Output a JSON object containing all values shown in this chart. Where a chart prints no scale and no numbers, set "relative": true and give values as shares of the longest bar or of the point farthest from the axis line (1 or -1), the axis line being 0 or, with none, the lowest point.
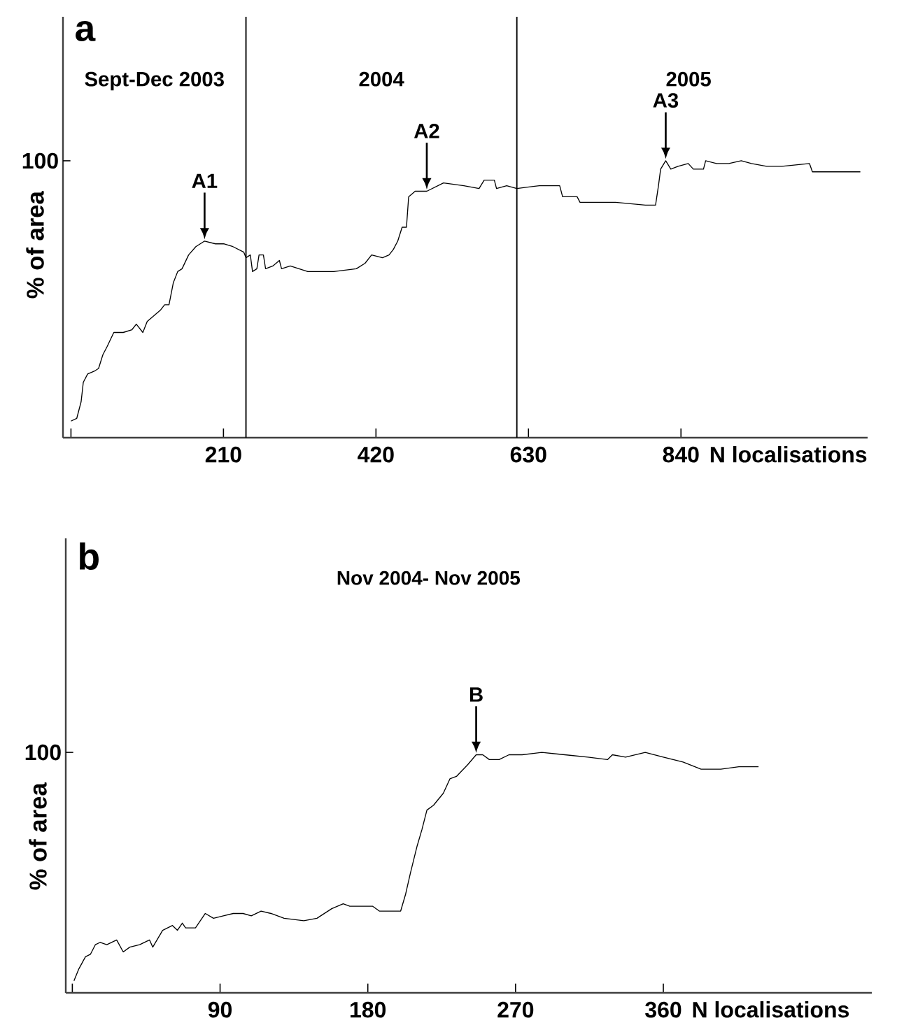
{
  "chart_data": [
    {
      "type": "line",
      "title": "a",
      "ylabel": "% of area",
      "xlabel": "N localisations",
      "relative": true,
      "color": "#000000",
      "xlim": [
        -11,
        1097
      ],
      "xticks": [
        {
          "value": 0,
          "label": null
        },
        210,
        420,
        630,
        840
      ],
      "x": [
        0,
        8,
        14,
        17,
        23,
        32,
        38,
        44,
        50,
        59,
        72,
        84,
        90,
        99,
        105,
        114,
        123,
        129,
        135,
        141,
        147,
        153,
        162,
        172,
        184,
        199,
        211,
        223,
        238,
        241,
        247,
        250,
        256,
        259,
        265,
        268,
        278,
        287,
        290,
        302,
        326,
        332,
        362,
        393,
        405,
        414,
        429,
        438,
        444,
        450,
        456,
        462,
        465,
        474,
        490,
        513,
        541,
        562,
        569,
        583,
        586,
        600,
        614,
        645,
        673,
        677,
        697,
        701,
        750,
        791,
        805,
        809,
        812,
        819,
        826,
        836,
        850,
        857,
        871,
        874,
        889,
        906,
        923,
        937,
        958,
        979,
        1017,
        1021,
        1062,
        1087
      ],
      "values": [
        0.06,
        0.07,
        0.13,
        0.2,
        0.23,
        0.24,
        0.25,
        0.3,
        0.33,
        0.38,
        0.38,
        0.39,
        0.41,
        0.38,
        0.42,
        0.44,
        0.46,
        0.48,
        0.48,
        0.56,
        0.6,
        0.61,
        0.66,
        0.69,
        0.71,
        0.7,
        0.7,
        0.69,
        0.67,
        0.65,
        0.66,
        0.6,
        0.61,
        0.66,
        0.66,
        0.61,
        0.62,
        0.64,
        0.61,
        0.62,
        0.6,
        0.6,
        0.6,
        0.61,
        0.63,
        0.66,
        0.65,
        0.66,
        0.68,
        0.71,
        0.76,
        0.76,
        0.87,
        0.89,
        0.89,
        0.92,
        0.91,
        0.9,
        0.93,
        0.93,
        0.9,
        0.91,
        0.9,
        0.91,
        0.91,
        0.87,
        0.87,
        0.85,
        0.85,
        0.84,
        0.84,
        0.91,
        0.97,
        1.0,
        0.97,
        0.98,
        0.99,
        0.97,
        0.97,
        1.0,
        0.99,
        0.99,
        1.0,
        0.99,
        0.98,
        0.98,
        0.99,
        0.96,
        0.96,
        0.96
      ],
      "ref_lines": [
        {
          "axis": "x",
          "value": 241
        },
        {
          "axis": "x",
          "value": 614
        }
      ],
      "annotations": [
        "100",
        "Sept-Dec 2003",
        "2004",
        "2005",
        {
          "text": "A1",
          "x": 184,
          "y": 0.71
        },
        {
          "text": "A2",
          "x": 490,
          "y": 0.89
        },
        {
          "text": "A3",
          "x": 819,
          "y": 1.0
        }
      ]
    },
    {
      "type": "line",
      "title": "b",
      "subtitle": "Nov 2004- Nov 2005",
      "ylabel": "% of area",
      "xlabel": "N localisations",
      "relative": true,
      "color": "#000000",
      "xlim": [
        -4,
        487
      ],
      "xticks": [
        {
          "value": 0,
          "label": null
        },
        90,
        180,
        270,
        360
      ],
      "x": [
        1,
        4,
        8,
        11,
        14,
        17,
        21,
        27,
        31,
        35,
        41,
        47,
        49,
        55,
        61,
        64,
        67,
        69,
        75,
        81,
        86,
        92,
        98,
        104,
        109,
        115,
        121,
        129,
        141,
        149,
        158,
        165,
        169,
        183,
        187,
        200,
        203,
        206,
        210,
        213,
        216,
        220,
        226,
        230,
        234,
        241,
        246,
        250,
        254,
        260,
        266,
        274,
        286,
        300,
        314,
        326,
        329,
        337,
        349,
        360,
        372,
        383,
        395,
        406,
        418
      ],
      "values": [
        0.05,
        0.1,
        0.15,
        0.16,
        0.2,
        0.21,
        0.2,
        0.22,
        0.17,
        0.19,
        0.2,
        0.22,
        0.19,
        0.26,
        0.28,
        0.26,
        0.29,
        0.27,
        0.27,
        0.33,
        0.31,
        0.32,
        0.33,
        0.33,
        0.32,
        0.34,
        0.33,
        0.31,
        0.3,
        0.31,
        0.35,
        0.37,
        0.36,
        0.36,
        0.34,
        0.34,
        0.41,
        0.5,
        0.61,
        0.68,
        0.76,
        0.78,
        0.83,
        0.89,
        0.9,
        0.95,
        0.99,
        0.99,
        0.97,
        0.97,
        0.99,
        0.99,
        1.0,
        0.99,
        0.98,
        0.97,
        0.99,
        0.98,
        1.0,
        0.98,
        0.96,
        0.93,
        0.93,
        0.94,
        0.94
      ],
      "annotations": [
        "100",
        {
          "text": "B",
          "x": 246,
          "y": 0.99
        }
      ]
    }
  ]
}
